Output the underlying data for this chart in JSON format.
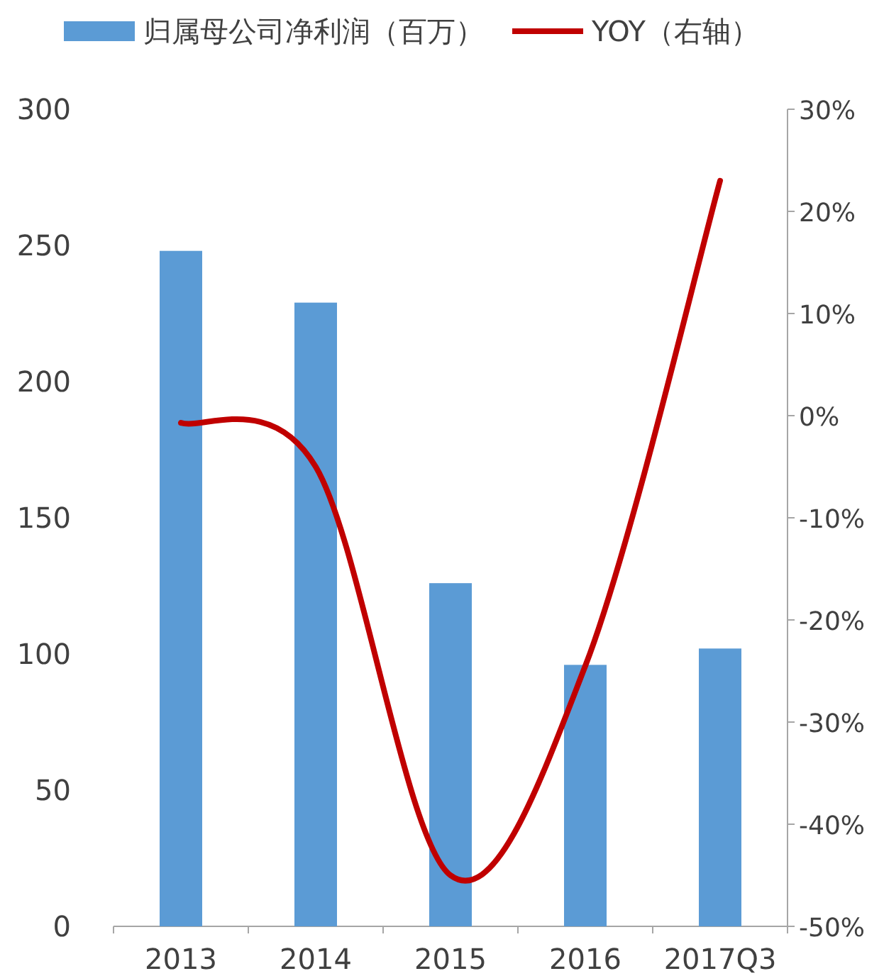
{
  "chart_data": {
    "type": "bar",
    "categories": [
      "2013",
      "2014",
      "2015",
      "2016",
      "2017Q3"
    ],
    "series": [
      {
        "name": "归属母公司净利润（百万）",
        "color": "#5b9bd5",
        "values": [
          248,
          229,
          126,
          96,
          102
        ]
      },
      {
        "name": "YOY（右轴）",
        "type": "line",
        "axis": "y2",
        "color": "#c00000",
        "values": [
          -0.7,
          -5,
          -45,
          -24.5,
          23
        ]
      }
    ],
    "ylim": [
      0,
      300
    ],
    "yticks": [
      0,
      50,
      100,
      150,
      200,
      250,
      300
    ],
    "y2lim": [
      -50,
      30
    ],
    "y2ticks": [
      {
        "value": -50,
        "label": "-50%"
      },
      {
        "value": -40,
        "label": "-40%"
      },
      {
        "value": -30,
        "label": "-30%"
      },
      {
        "value": -20,
        "label": "-20%"
      },
      {
        "value": -10,
        "label": "-10%"
      },
      {
        "value": 0,
        "label": "0%"
      },
      {
        "value": 10,
        "label": "10%"
      },
      {
        "value": 20,
        "label": "20%"
      },
      {
        "value": 30,
        "label": "30%"
      }
    ],
    "legend": "top",
    "grid": false
  }
}
